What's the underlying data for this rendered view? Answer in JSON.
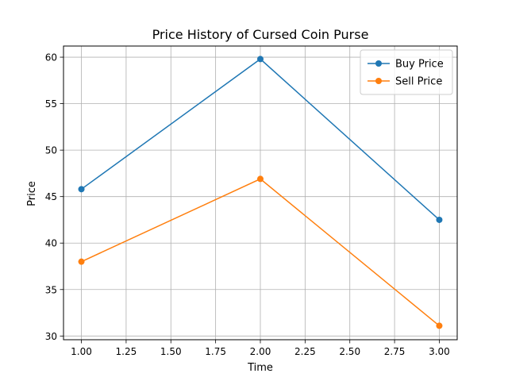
{
  "chart_data": {
    "type": "line",
    "title": "Price History of Cursed Coin Purse",
    "xlabel": "Time",
    "ylabel": "Price",
    "xlim": [
      0.9,
      3.1
    ],
    "ylim": [
      29.6,
      61.2
    ],
    "xticks": [
      "1.00",
      "1.25",
      "1.50",
      "1.75",
      "2.00",
      "2.25",
      "2.50",
      "2.75",
      "3.00"
    ],
    "yticks": [
      "30",
      "35",
      "40",
      "45",
      "50",
      "55",
      "60"
    ],
    "grid": true,
    "legend_position": "top-right",
    "x": [
      1,
      2,
      3
    ],
    "series": [
      {
        "name": "Buy Price",
        "color": "#1f77b4",
        "marker": "circle",
        "values": [
          45.8,
          59.8,
          42.5
        ]
      },
      {
        "name": "Sell Price",
        "color": "#ff7f0e",
        "marker": "circle",
        "values": [
          38.0,
          46.9,
          31.1
        ]
      }
    ]
  }
}
